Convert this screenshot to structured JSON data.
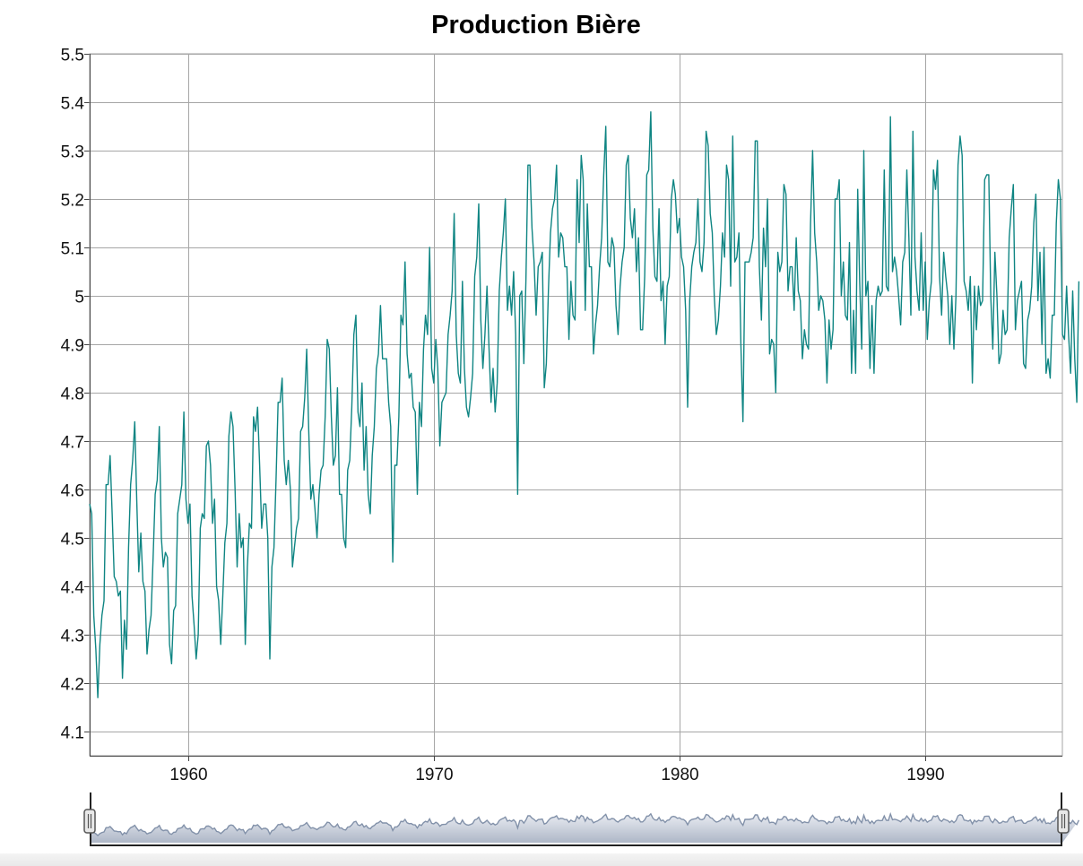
{
  "chart_data": {
    "type": "line",
    "title": "Production Bière",
    "xlabel": "",
    "ylabel": "",
    "xlim": [
      1956.0,
      1995.58
    ],
    "ylim": [
      4.05,
      5.5
    ],
    "grid": true,
    "x_ticks": [
      1960,
      1970,
      1980,
      1990
    ],
    "x_tick_labels": [
      "1960",
      "1970",
      "1980",
      "1990"
    ],
    "y_ticks": [
      4.1,
      4.2,
      4.3,
      4.4,
      4.5,
      4.6,
      4.7,
      4.8,
      4.9,
      5.0,
      5.1,
      5.2,
      5.3,
      5.4,
      5.5
    ],
    "y_tick_labels": [
      "4.1",
      "4.2",
      "4.3",
      "4.4",
      "4.5",
      "4.6",
      "4.7",
      "4.8",
      "4.9",
      "5",
      "5.1",
      "5.2",
      "5.3",
      "5.4",
      "5.5"
    ],
    "line_color": "#0f8583",
    "series": [
      {
        "x_start": "1956-01",
        "frequency": "monthly",
        "values": [
          4.57,
          4.55,
          4.34,
          4.27,
          4.17,
          4.28,
          4.34,
          4.37,
          4.61,
          4.61,
          4.67,
          4.55,
          4.42,
          4.41,
          4.38,
          4.39,
          4.21,
          4.33,
          4.27,
          4.48,
          4.61,
          4.66,
          4.74,
          4.58,
          4.43,
          4.51,
          4.41,
          4.39,
          4.26,
          4.31,
          4.34,
          4.46,
          4.59,
          4.62,
          4.73,
          4.5,
          4.44,
          4.47,
          4.46,
          4.28,
          4.24,
          4.35,
          4.36,
          4.55,
          4.58,
          4.61,
          4.76,
          4.58,
          4.53,
          4.57,
          4.38,
          4.32,
          4.25,
          4.3,
          4.52,
          4.55,
          4.54,
          4.69,
          4.7,
          4.65,
          4.53,
          4.58,
          4.4,
          4.37,
          4.28,
          4.38,
          4.49,
          4.53,
          4.71,
          4.76,
          4.73,
          4.6,
          4.44,
          4.55,
          4.48,
          4.5,
          4.28,
          4.44,
          4.53,
          4.52,
          4.75,
          4.72,
          4.77,
          4.65,
          4.52,
          4.57,
          4.57,
          4.5,
          4.25,
          4.44,
          4.48,
          4.62,
          4.78,
          4.78,
          4.83,
          4.66,
          4.61,
          4.66,
          4.6,
          4.44,
          4.48,
          4.52,
          4.54,
          4.72,
          4.73,
          4.79,
          4.89,
          4.72,
          4.58,
          4.61,
          4.56,
          4.5,
          4.59,
          4.64,
          4.65,
          4.75,
          4.91,
          4.89,
          4.75,
          4.65,
          4.67,
          4.81,
          4.59,
          4.59,
          4.5,
          4.48,
          4.64,
          4.66,
          4.77,
          4.92,
          4.96,
          4.76,
          4.73,
          4.82,
          4.64,
          4.73,
          4.59,
          4.55,
          4.67,
          4.73,
          4.85,
          4.88,
          4.98,
          4.87,
          4.87,
          4.87,
          4.78,
          4.73,
          4.45,
          4.65,
          4.65,
          4.75,
          4.96,
          4.94,
          5.07,
          4.88,
          4.83,
          4.84,
          4.77,
          4.76,
          4.59,
          4.78,
          4.73,
          4.89,
          4.96,
          4.92,
          5.1,
          4.85,
          4.82,
          4.91,
          4.85,
          4.69,
          4.78,
          4.79,
          4.8,
          4.92,
          4.96,
          5.01,
          5.17,
          4.92,
          4.84,
          4.82,
          5.03,
          4.85,
          4.77,
          4.75,
          4.79,
          4.84,
          5.04,
          5.08,
          5.19,
          4.95,
          4.85,
          4.92,
          5.02,
          4.89,
          4.78,
          4.85,
          4.76,
          4.82,
          5.01,
          5.08,
          5.13,
          5.2,
          4.97,
          5.02,
          4.96,
          5.05,
          4.92,
          4.59,
          5.0,
          5.01,
          4.86,
          5.03,
          5.27,
          5.27,
          5.14,
          5.07,
          4.96,
          5.06,
          5.07,
          5.09,
          4.81,
          4.86,
          5.01,
          5.13,
          5.18,
          5.2,
          5.27,
          5.08,
          5.13,
          5.12,
          5.06,
          5.06,
          4.91,
          5.03,
          4.96,
          4.95,
          5.24,
          5.11,
          5.29,
          5.24,
          4.97,
          5.19,
          5.06,
          5.06,
          4.88,
          4.94,
          4.98,
          5.06,
          5.12,
          5.25,
          5.35,
          5.07,
          5.06,
          5.12,
          5.1,
          4.98,
          4.92,
          5.02,
          5.07,
          5.1,
          5.27,
          5.29,
          5.16,
          5.12,
          5.18,
          5.05,
          5.12,
          4.93,
          4.93,
          5.04,
          5.25,
          5.26,
          5.38,
          5.14,
          5.04,
          5.03,
          5.18,
          4.99,
          5.03,
          4.9,
          5.02,
          5.04,
          5.2,
          5.24,
          5.21,
          5.13,
          5.16,
          5.08,
          5.06,
          4.97,
          4.77,
          4.99,
          5.06,
          5.09,
          5.11,
          5.2,
          5.07,
          5.05,
          5.11,
          5.34,
          5.31,
          5.17,
          5.13,
          5.0,
          4.92,
          4.95,
          5.02,
          5.13,
          5.08,
          5.27,
          5.24,
          5.02,
          5.33,
          5.07,
          5.08,
          5.13,
          4.9,
          4.74,
          5.07,
          5.07,
          5.07,
          5.09,
          5.12,
          5.32,
          5.32,
          5.06,
          4.95,
          5.14,
          5.06,
          5.2,
          4.88,
          4.91,
          4.9,
          4.8,
          5.09,
          5.05,
          5.07,
          5.23,
          5.21,
          5.01,
          5.06,
          5.06,
          4.97,
          5.12,
          5.01,
          4.99,
          4.87,
          4.93,
          4.9,
          4.89,
          5.15,
          5.3,
          5.13,
          5.07,
          4.97,
          5.0,
          4.99,
          4.95,
          4.82,
          4.95,
          4.89,
          4.93,
          5.2,
          5.2,
          5.24,
          5.0,
          5.07,
          4.96,
          4.95,
          5.11,
          4.84,
          4.97,
          4.84,
          5.22,
          5.03,
          4.89,
          5.3,
          5.0,
          5.03,
          4.85,
          4.98,
          4.84,
          4.99,
          5.02,
          5.0,
          5.01,
          5.26,
          5.02,
          5.01,
          5.37,
          5.05,
          5.08,
          5.05,
          5.0,
          4.94,
          5.07,
          5.09,
          5.26,
          5.12,
          4.96,
          5.34,
          5.08,
          5.01,
          4.97,
          5.13,
          4.97,
          5.07,
          4.91,
          4.99,
          5.03,
          5.26,
          5.22,
          5.28,
          5.04,
          4.96,
          5.09,
          5.04,
          5.0,
          4.9,
          5.0,
          4.89,
          5.0,
          5.27,
          5.33,
          5.29,
          5.03,
          5.01,
          4.97,
          5.04,
          4.82,
          5.02,
          4.93,
          5.02,
          4.98,
          4.99,
          5.24,
          5.25,
          5.25,
          5.0,
          4.89,
          5.09,
          5.0,
          4.86,
          4.88,
          4.97,
          4.92,
          4.93,
          5.12,
          5.18,
          5.23,
          4.93,
          4.99,
          5.01,
          5.03,
          4.86,
          4.85,
          4.95,
          4.97,
          5.02,
          5.15,
          5.21,
          4.99,
          5.09,
          4.9,
          5.1,
          4.84,
          4.87,
          4.83,
          4.96,
          4.96,
          5.15,
          5.24,
          5.2,
          4.92,
          4.91,
          5.02,
          4.92,
          4.84,
          5.01,
          4.87,
          4.78,
          5.03
        ]
      }
    ]
  }
}
